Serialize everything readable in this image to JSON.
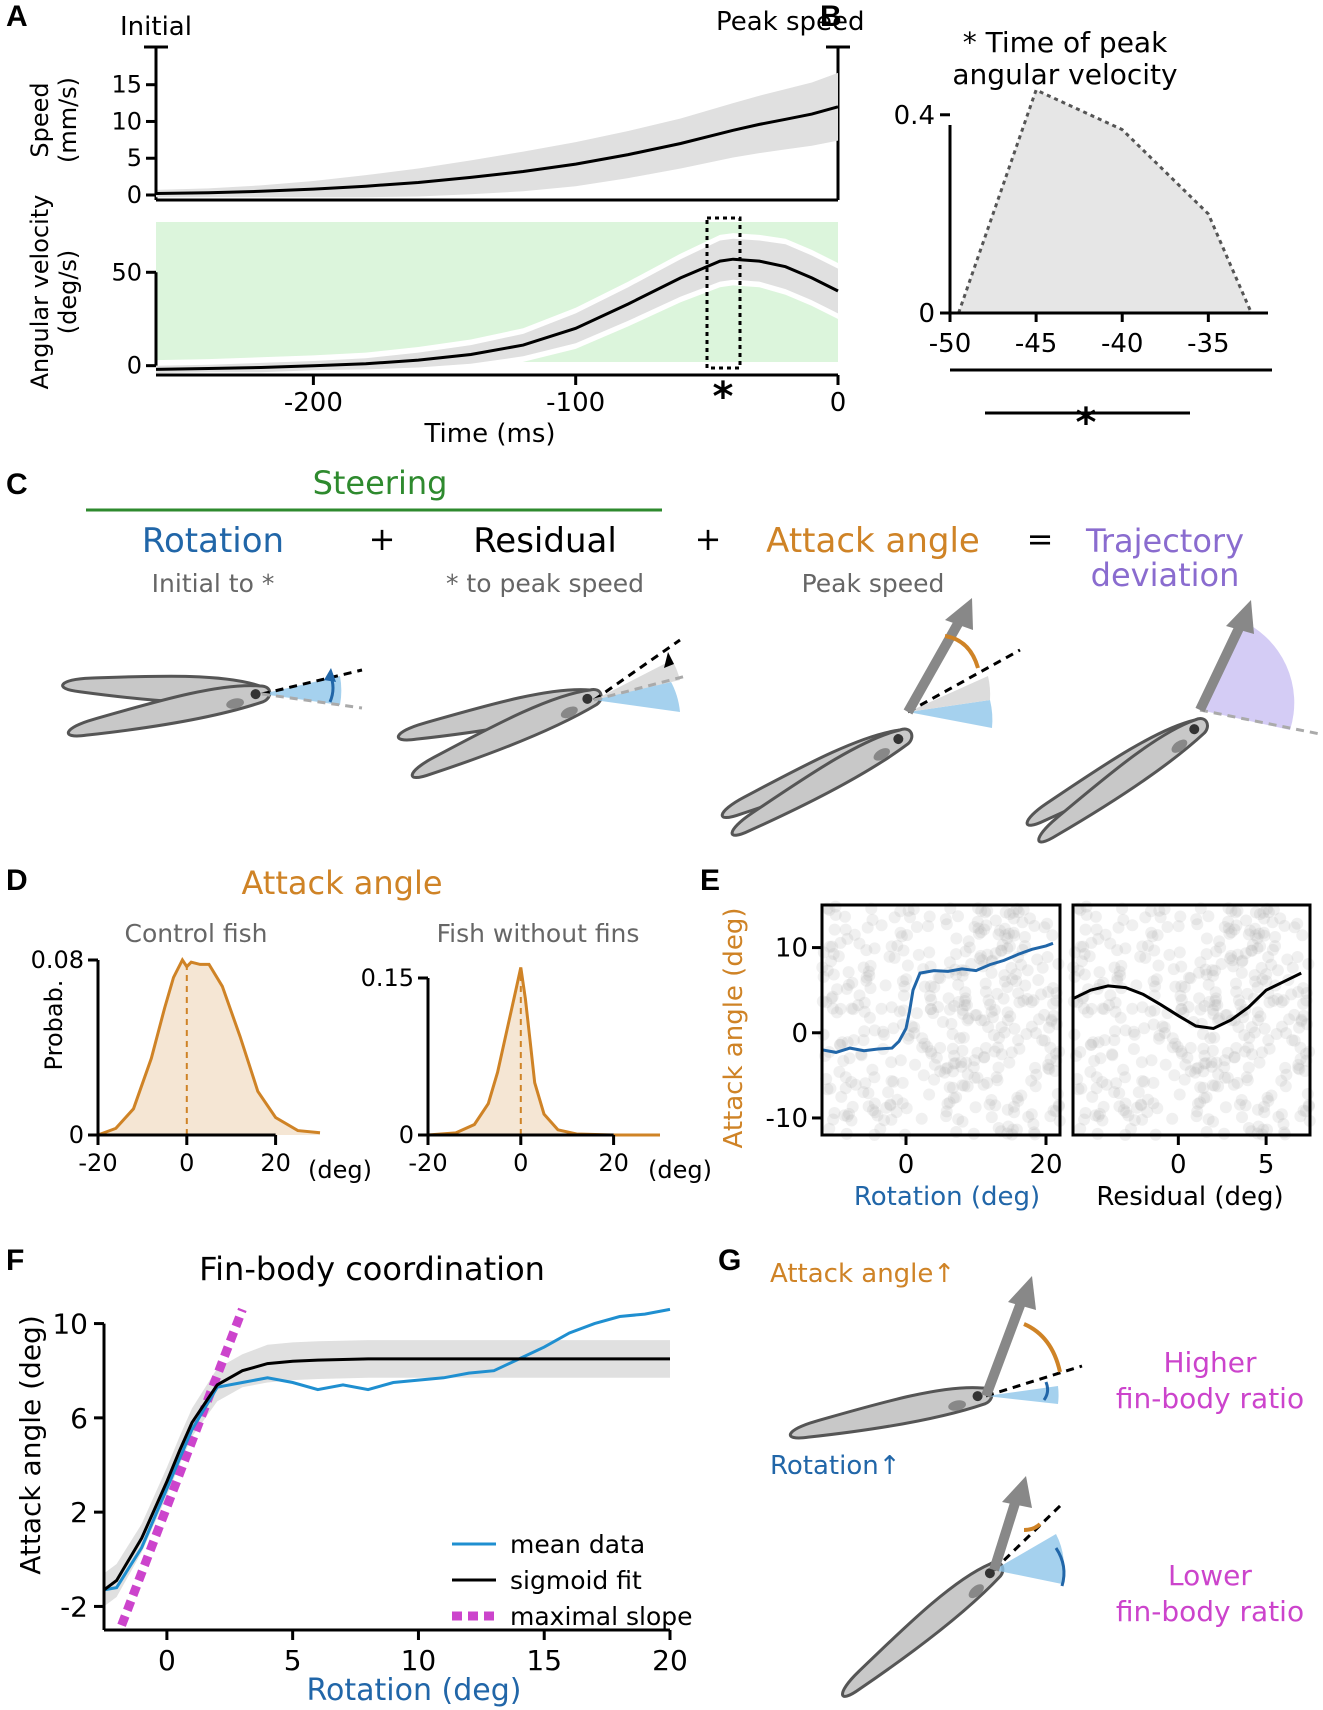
{
  "panels": [
    "A",
    "B",
    "C",
    "D",
    "E",
    "F",
    "G"
  ],
  "colors": {
    "rotation": "#2166a8",
    "attack": "#cf8326",
    "deviation": "#8a6ccf",
    "steering": "#2e8a2e",
    "fit_slope": "#cc44cc",
    "green_bg": "#dcf5dc",
    "band": "#e0e0e0"
  },
  "A": {
    "initial_label": "Initial",
    "peak_label": "Peak speed",
    "speed_ylabel_1": "Speed",
    "speed_ylabel_2": "(mm/s)",
    "angvel_ylabel_1": "Angular velocity",
    "angvel_ylabel_2": "(deg/s)",
    "xlabel": "Time (ms)",
    "star": "*"
  },
  "B": {
    "title_1": "* Time of peak",
    "title_2": "angular velocity",
    "star": "*"
  },
  "C": {
    "steering": "Steering",
    "rotation": "Rotation",
    "rotation_sub": "Initial to *",
    "plus1": "+",
    "residual": "Residual",
    "residual_sub": "* to peak speed",
    "plus2": "+",
    "attack": "Attack angle",
    "attack_sub": "Peak speed",
    "equals": "=",
    "trajectory_1": "Trajectory",
    "trajectory_2": "deviation"
  },
  "D": {
    "title": "Attack angle",
    "left_sub": "Control fish",
    "right_sub": "Fish without fins",
    "ylabel": "Probab.",
    "unit": "(deg)"
  },
  "E": {
    "ylabel": "Attack angle (deg)",
    "left_xlabel": "Rotation (deg)",
    "right_xlabel": "Residual (deg)"
  },
  "F": {
    "title": "Fin-body coordination",
    "ylabel": "Attack angle (deg)",
    "xlabel": "Rotation (deg)",
    "legend": {
      "mean": "mean data",
      "fit": "sigmoid fit",
      "slope": "maximal slope"
    }
  },
  "G": {
    "attack_up": "Attack angle↑",
    "rotation_up": "Rotation↑",
    "higher_1": "Higher",
    "higher_2": "fin-body ratio",
    "lower_1": "Lower",
    "lower_2": "fin-body ratio"
  },
  "chart_data": [
    {
      "id": "A_speed",
      "type": "line",
      "xlim": [
        -260,
        0
      ],
      "ylim": [
        0,
        17
      ],
      "yticks": [
        0,
        5,
        10,
        15
      ],
      "x": [
        -260,
        -240,
        -220,
        -200,
        -180,
        -160,
        -140,
        -120,
        -100,
        -80,
        -60,
        -40,
        -30,
        -20,
        -10,
        0
      ],
      "y": [
        0.2,
        0.3,
        0.5,
        0.8,
        1.2,
        1.7,
        2.4,
        3.2,
        4.2,
        5.5,
        7,
        8.8,
        9.6,
        10.3,
        11,
        12
      ],
      "band": [
        0.5,
        0.6,
        0.8,
        1.1,
        1.5,
        1.9,
        2.3,
        2.7,
        3,
        3.2,
        3.4,
        3.7,
        3.9,
        4.1,
        4.3,
        4.6
      ]
    },
    {
      "id": "A_angvel",
      "type": "line",
      "xlim": [
        -260,
        0
      ],
      "ylim": [
        -5,
        78
      ],
      "yticks": [
        0,
        50
      ],
      "xticks": [
        -200,
        -100,
        0
      ],
      "x": [
        -260,
        -240,
        -220,
        -200,
        -180,
        -160,
        -140,
        -120,
        -100,
        -80,
        -60,
        -45,
        -40,
        -30,
        -20,
        -10,
        0
      ],
      "y": [
        -2,
        -1.5,
        -1,
        0,
        1,
        3,
        6,
        11,
        20,
        33,
        47,
        56,
        57,
        56,
        53,
        47,
        40
      ],
      "band": [
        2,
        2,
        2.5,
        2.5,
        3,
        4,
        5,
        6,
        8,
        9,
        10,
        11,
        11,
        11,
        12,
        12,
        12
      ]
    },
    {
      "id": "B",
      "type": "area",
      "xlim": [
        -50,
        -32
      ],
      "ylim": [
        0,
        0.45
      ],
      "xticks": [
        -50,
        -45,
        -40,
        -35
      ],
      "yticks": [
        0,
        0.4
      ],
      "x": [
        -49.5,
        -45,
        -40,
        -35,
        -32.5
      ],
      "y": [
        0,
        0.45,
        0.37,
        0.2,
        0
      ]
    },
    {
      "id": "D_control",
      "type": "line",
      "xlim": [
        -20,
        30
      ],
      "ylim": [
        0,
        0.08
      ],
      "xticks": [
        -20,
        0,
        20
      ],
      "yticks": [
        0,
        0.08
      ],
      "x": [
        -20,
        -16,
        -12,
        -8,
        -5,
        -3,
        -1,
        0,
        1,
        3,
        5,
        8,
        12,
        16,
        20,
        25,
        30
      ],
      "y": [
        0,
        0.003,
        0.012,
        0.035,
        0.058,
        0.072,
        0.08,
        0.077,
        0.079,
        0.078,
        0.078,
        0.068,
        0.045,
        0.02,
        0.008,
        0.002,
        0.001
      ]
    },
    {
      "id": "D_nofins",
      "type": "line",
      "xlim": [
        -20,
        30
      ],
      "ylim": [
        0,
        0.15
      ],
      "xticks": [
        -20,
        0,
        20
      ],
      "yticks": [
        0,
        0.15
      ],
      "x": [
        -20,
        -14,
        -10,
        -7,
        -5,
        -3,
        -1,
        0,
        1,
        2,
        3,
        5,
        8,
        12,
        20,
        30
      ],
      "y": [
        0,
        0.002,
        0.01,
        0.03,
        0.06,
        0.1,
        0.14,
        0.16,
        0.13,
        0.09,
        0.05,
        0.02,
        0.005,
        0.001,
        0,
        0
      ]
    },
    {
      "id": "E_rotation",
      "type": "scatter",
      "xlim": [
        -12,
        22
      ],
      "ylim": [
        -12,
        15
      ],
      "xticks": [
        0,
        20
      ],
      "yticks": [
        -10,
        0,
        10
      ],
      "mean_x": [
        -12,
        -10,
        -8,
        -6,
        -4,
        -2,
        -1,
        0,
        0.5,
        1,
        2,
        4,
        6,
        8,
        10,
        12,
        14,
        16,
        18,
        20,
        21
      ],
      "mean_y": [
        -2,
        -2.3,
        -1.8,
        -2.1,
        -1.9,
        -1.8,
        -1,
        0.5,
        2.5,
        5,
        7,
        7.3,
        7.2,
        7.5,
        7.3,
        8,
        8.5,
        9.2,
        9.8,
        10.2,
        10.5
      ]
    },
    {
      "id": "E_residual",
      "type": "scatter",
      "xlim": [
        -6,
        7.5
      ],
      "ylim": [
        -12,
        15
      ],
      "xticks": [
        0,
        5
      ],
      "mean_x": [
        -6,
        -5,
        -4,
        -3,
        -2,
        -1,
        0,
        1,
        2,
        3,
        4,
        5,
        6,
        7
      ],
      "mean_y": [
        4,
        5,
        5.5,
        5.3,
        4.5,
        3.3,
        2,
        0.8,
        0.5,
        1.5,
        3,
        5,
        6,
        7
      ]
    },
    {
      "id": "F",
      "type": "line",
      "xlim": [
        -2.5,
        20
      ],
      "ylim": [
        -3,
        11
      ],
      "xticks": [
        0,
        5,
        10,
        15,
        20
      ],
      "yticks": [
        -2,
        2,
        6,
        10
      ],
      "series": [
        {
          "name": "mean data",
          "x": [
            -2.5,
            -2,
            -1,
            0,
            1,
            2,
            3,
            4,
            5,
            6,
            7,
            8,
            9,
            10,
            11,
            12,
            13,
            14,
            15,
            16,
            17,
            18,
            19,
            20
          ],
          "y": [
            -1.3,
            -1.2,
            0.5,
            3,
            5.5,
            7.3,
            7.5,
            7.7,
            7.5,
            7.2,
            7.4,
            7.2,
            7.5,
            7.6,
            7.7,
            7.9,
            8,
            8.5,
            9,
            9.6,
            10,
            10.3,
            10.4,
            10.6
          ]
        },
        {
          "name": "sigmoid fit",
          "x": [
            -2.5,
            -2,
            -1,
            0,
            0.5,
            1,
            2,
            3,
            4,
            5,
            6,
            8,
            10,
            15,
            20
          ],
          "y": [
            -1.3,
            -0.9,
            0.9,
            3.3,
            4.6,
            5.8,
            7.4,
            8,
            8.3,
            8.4,
            8.45,
            8.5,
            8.5,
            8.5,
            8.5
          ],
          "band": [
            0.7,
            0.7,
            0.6,
            0.6,
            0.6,
            0.6,
            0.7,
            0.7,
            0.8,
            0.8,
            0.8,
            0.8,
            0.8,
            0.8,
            0.8
          ]
        },
        {
          "name": "maximal slope",
          "x": [
            -1.8,
            3
          ],
          "y": [
            -2.8,
            10.6
          ]
        }
      ]
    }
  ]
}
